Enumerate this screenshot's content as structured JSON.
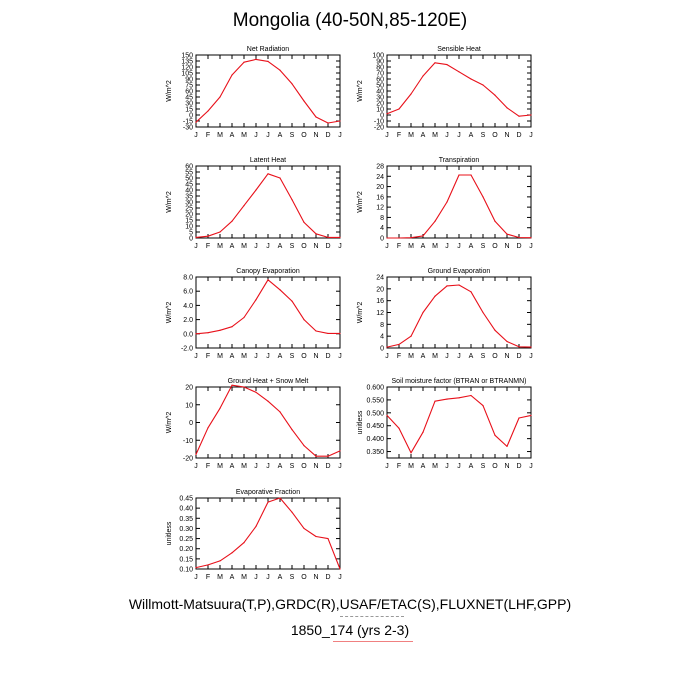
{
  "main_title": "Mongolia (40-50N,85-120E)",
  "footer": {
    "line1": "Willmott-Matsuura(T,P),GRDC(R),USAF/ETAC(S),FLUXNET(LHF,GPP)",
    "line2": "1850_174 (yrs 2-3)"
  },
  "colors": {
    "series": "#e8101a",
    "axis": "#000000"
  },
  "chart_data": [
    {
      "type": "line",
      "title": "Net Radiation",
      "ylabel": "W/m^2",
      "categories": [
        "J",
        "F",
        "M",
        "A",
        "M",
        "J",
        "J",
        "A",
        "S",
        "O",
        "N",
        "D",
        "J"
      ],
      "ylim": [
        -30,
        150
      ],
      "yticks": [
        -30,
        -15,
        0,
        15,
        30,
        45,
        60,
        75,
        90,
        105,
        120,
        135,
        150
      ],
      "ytick_labels": [
        "-30",
        "-15",
        "0",
        "15",
        "30",
        "45",
        "60",
        "75",
        "90",
        "105",
        "120",
        "135",
        "150"
      ],
      "values": [
        -18,
        10,
        45,
        100,
        132,
        139,
        134,
        112,
        78,
        35,
        -5,
        -20,
        -15
      ]
    },
    {
      "type": "line",
      "title": "Sensible Heat",
      "ylabel": "W/m^2",
      "categories": [
        "J",
        "F",
        "M",
        "A",
        "M",
        "J",
        "J",
        "A",
        "S",
        "O",
        "N",
        "D",
        "J"
      ],
      "ylim": [
        -20,
        100
      ],
      "yticks": [
        -20,
        -10,
        0,
        10,
        20,
        30,
        40,
        50,
        60,
        70,
        80,
        90,
        100
      ],
      "ytick_labels": [
        "-20",
        "-10",
        "0",
        "10",
        "20",
        "30",
        "40",
        "50",
        "60",
        "70",
        "80",
        "90",
        "100"
      ],
      "values": [
        2,
        10,
        35,
        65,
        87,
        84,
        72,
        60,
        50,
        33,
        12,
        -2,
        0
      ]
    },
    {
      "type": "line",
      "title": "Latent Heat",
      "ylabel": "W/m^2",
      "categories": [
        "J",
        "F",
        "M",
        "A",
        "M",
        "J",
        "J",
        "A",
        "S",
        "O",
        "N",
        "D",
        "J"
      ],
      "ylim": [
        0,
        60
      ],
      "yticks": [
        0,
        5,
        10,
        15,
        20,
        25,
        30,
        35,
        40,
        45,
        50,
        55,
        60
      ],
      "ytick_labels": [
        "0",
        "5",
        "10",
        "15",
        "20",
        "25",
        "30",
        "35",
        "40",
        "45",
        "50",
        "55",
        "60"
      ],
      "values": [
        0.5,
        1.5,
        5,
        14,
        27,
        40,
        53.5,
        50,
        32,
        13,
        3.5,
        0.5,
        0.5
      ]
    },
    {
      "type": "line",
      "title": "Transpiration",
      "ylabel": "W/m^2",
      "categories": [
        "J",
        "F",
        "M",
        "A",
        "M",
        "J",
        "J",
        "A",
        "S",
        "O",
        "N",
        "D",
        "J"
      ],
      "ylim": [
        0,
        28
      ],
      "yticks": [
        0,
        4,
        8,
        12,
        16,
        20,
        24,
        28
      ],
      "ytick_labels": [
        "0",
        "4",
        "8",
        "12",
        "16",
        "20",
        "24",
        "28"
      ],
      "values": [
        0,
        0,
        0.1,
        0.8,
        6.5,
        14,
        24.5,
        24.5,
        16,
        6.5,
        1.5,
        0.2,
        0.1
      ]
    },
    {
      "type": "line",
      "title": "Canopy Evaporation",
      "ylabel": "W/m^2",
      "categories": [
        "J",
        "F",
        "M",
        "A",
        "M",
        "J",
        "J",
        "A",
        "S",
        "O",
        "N",
        "D",
        "J"
      ],
      "ylim": [
        -2,
        8
      ],
      "yticks": [
        -2,
        0,
        2,
        4,
        6,
        8
      ],
      "ytick_labels": [
        "-2.0",
        "0.0",
        "2.0",
        "4.0",
        "6.0",
        "8.0"
      ],
      "values": [
        0,
        0.15,
        0.5,
        1,
        2.3,
        4.8,
        7.6,
        6.2,
        4.6,
        2,
        0.4,
        0.05,
        0.05
      ]
    },
    {
      "type": "line",
      "title": "Ground Evaporation",
      "ylabel": "W/m^2",
      "categories": [
        "J",
        "F",
        "M",
        "A",
        "M",
        "J",
        "J",
        "A",
        "S",
        "O",
        "N",
        "D",
        "J"
      ],
      "ylim": [
        0,
        24
      ],
      "yticks": [
        0,
        4,
        8,
        12,
        16,
        20,
        24
      ],
      "ytick_labels": [
        "0",
        "4",
        "8",
        "12",
        "16",
        "20",
        "24"
      ],
      "values": [
        0.3,
        1.2,
        4,
        12,
        17.5,
        21,
        21.3,
        19,
        12,
        6,
        2.2,
        0.4,
        0.3
      ]
    },
    {
      "type": "line",
      "title": "Ground Heat + Snow Melt",
      "ylabel": "W/m^2",
      "categories": [
        "J",
        "F",
        "M",
        "A",
        "M",
        "J",
        "J",
        "A",
        "S",
        "O",
        "N",
        "D",
        "J"
      ],
      "ylim": [
        -20,
        20
      ],
      "yticks": [
        -20,
        -10,
        0,
        10,
        20
      ],
      "ytick_labels": [
        "-20",
        "-10",
        "0",
        "10",
        "20"
      ],
      "values": [
        -18,
        -3,
        8,
        21,
        20,
        17,
        12,
        6,
        -4,
        -13,
        -19,
        -19,
        -16
      ]
    },
    {
      "type": "line",
      "title": "Soil moisture factor (BTRAN or BTRANMN)",
      "ylabel": "unitless",
      "categories": [
        "J",
        "F",
        "M",
        "A",
        "M",
        "J",
        "J",
        "A",
        "S",
        "O",
        "N",
        "D",
        "J"
      ],
      "ylim": [
        0.325,
        0.6
      ],
      "yticks": [
        0.35,
        0.4,
        0.45,
        0.5,
        0.55,
        0.6
      ],
      "ytick_labels": [
        "0.350",
        "0.400",
        "0.450",
        "0.500",
        "0.550",
        "0.600"
      ],
      "values": [
        0.49,
        0.44,
        0.345,
        0.425,
        0.545,
        0.553,
        0.558,
        0.567,
        0.528,
        0.413,
        0.37,
        0.48,
        0.49
      ]
    },
    {
      "type": "line",
      "title": "Evaporative Fraction",
      "ylabel": "unitless",
      "categories": [
        "J",
        "F",
        "M",
        "A",
        "M",
        "J",
        "J",
        "A",
        "S",
        "O",
        "N",
        "D",
        "J"
      ],
      "ylim": [
        0.1,
        0.45
      ],
      "yticks": [
        0.1,
        0.15,
        0.2,
        0.25,
        0.3,
        0.35,
        0.4,
        0.45
      ],
      "ytick_labels": [
        "0.10",
        "0.15",
        "0.20",
        "0.25",
        "0.30",
        "0.35",
        "0.40",
        "0.45"
      ],
      "values": [
        0.107,
        0.12,
        0.14,
        0.18,
        0.23,
        0.31,
        0.43,
        0.45,
        0.38,
        0.3,
        0.26,
        0.25,
        0.1
      ]
    }
  ]
}
